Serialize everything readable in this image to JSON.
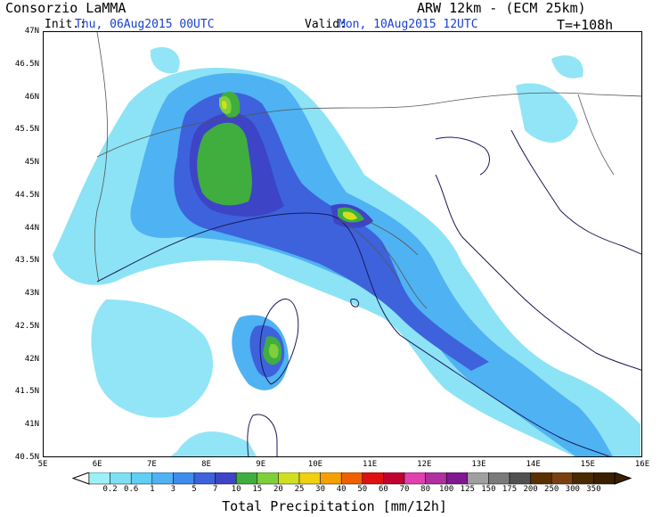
{
  "header": {
    "org": "Consorzio LaMMA",
    "init_label": "Init.:",
    "init_value": "Thu, 06Aug2015 00UTC",
    "valid_label": "Valid:",
    "valid_value": "Mon, 10Aug2015 12UTC",
    "model": "ARW 12km - (ECM 25km)",
    "lead_time": "T=+108h"
  },
  "axes": {
    "lat_labels": [
      "47N",
      "46.5N",
      "46N",
      "45.5N",
      "45N",
      "44.5N",
      "44N",
      "43.5N",
      "43N",
      "42.5N",
      "42N",
      "41.5N",
      "41N",
      "40.5N"
    ],
    "lon_labels": [
      "5E",
      "6E",
      "7E",
      "8E",
      "9E",
      "10E",
      "11E",
      "12E",
      "13E",
      "14E",
      "15E",
      "16E"
    ]
  },
  "colorbar": {
    "title": "Total Precipitation [mm/12h]",
    "levels": [
      "0.2",
      "0.6",
      "1",
      "3",
      "5",
      "7",
      "10",
      "15",
      "20",
      "25",
      "30",
      "40",
      "50",
      "60",
      "70",
      "80",
      "100",
      "125",
      "150",
      "175",
      "200",
      "250",
      "300",
      "350"
    ],
    "colors": [
      "#9ef0f8",
      "#7fe0f4",
      "#5fcff4",
      "#4fb2f2",
      "#3f8cee",
      "#3d62dc",
      "#3d44c6",
      "#3fae3f",
      "#7fcf3a",
      "#d0e020",
      "#f0d010",
      "#f5a000",
      "#f06000",
      "#e01010",
      "#c00030",
      "#e040b0",
      "#b030a0",
      "#801890",
      "#a0a0a0",
      "#7a7a7a",
      "#505050",
      "#5a3000",
      "#7a4010",
      "#4a2a00",
      "#3a2000"
    ]
  },
  "map": {
    "region": "Northern / Central Italy",
    "lon_range": [
      5,
      16
    ],
    "lat_range": [
      40.5,
      47
    ],
    "precip_colors": {
      "light": "#7fe0f4",
      "med": "#4fb2f2",
      "heavy": "#3d62dc",
      "vheavy": "#3d44c6",
      "green": "#3fae3f",
      "lgreen": "#7fcf3a",
      "yellow": "#d0e020"
    }
  }
}
